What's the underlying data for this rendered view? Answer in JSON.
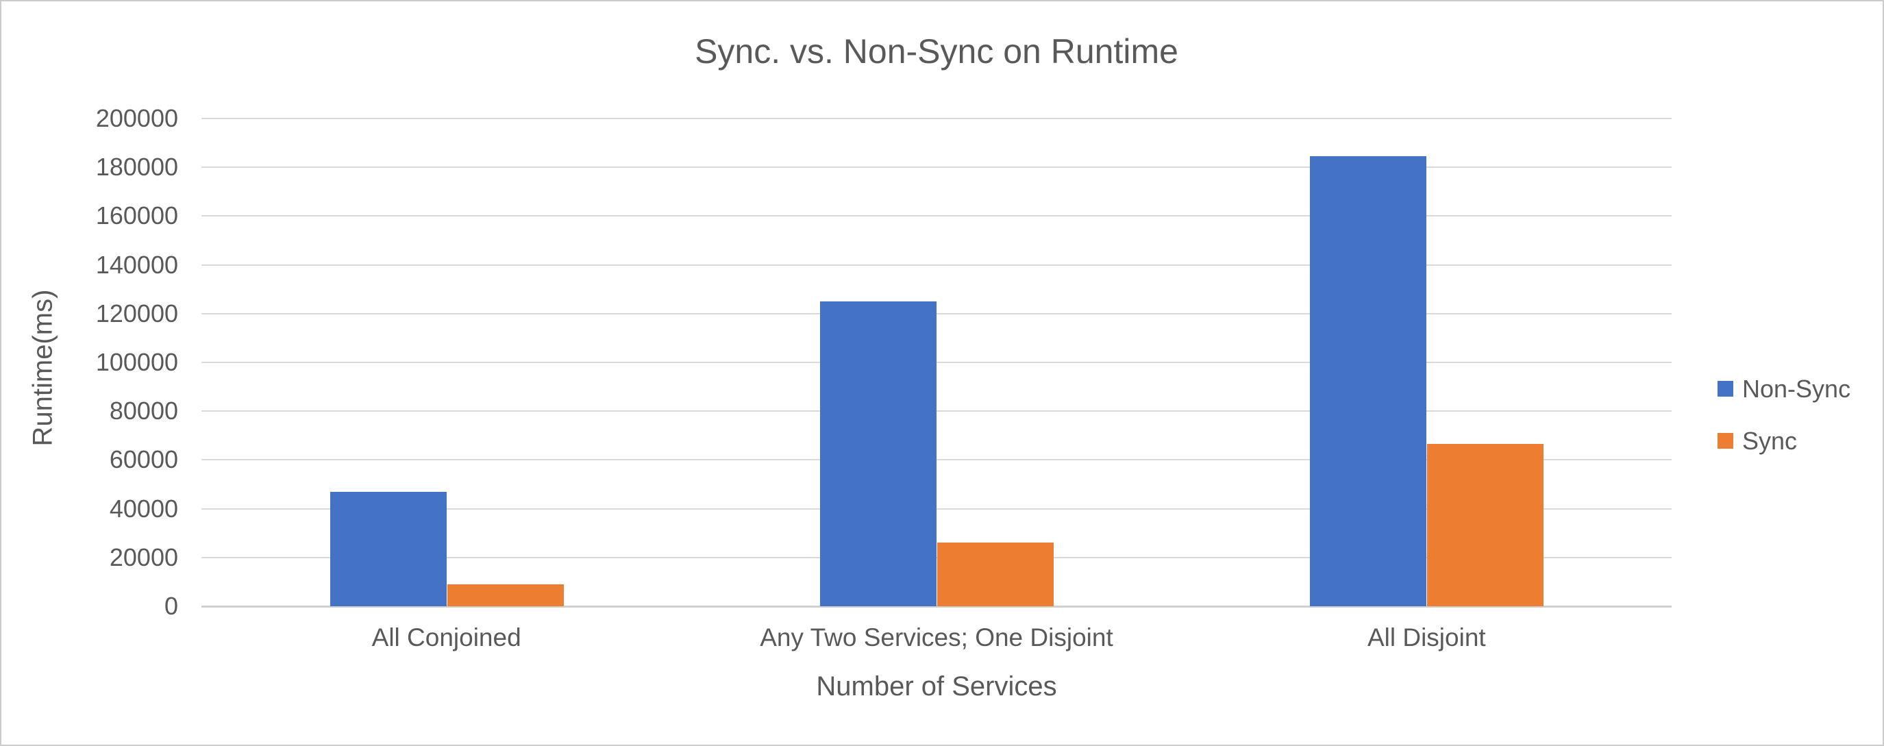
{
  "window": {
    "background": "#ffffff",
    "border_color": "#cccccc"
  },
  "chart_data": {
    "type": "bar",
    "title": "Sync. vs. Non-Sync on Runtime",
    "categories": [
      "All Conjoined",
      "Any Two Services; One Disjoint",
      "All Disjoint"
    ],
    "series": [
      {
        "name": "Non-Sync",
        "color": "#4472C4",
        "values": [
          47000,
          125000,
          184500
        ]
      },
      {
        "name": "Sync",
        "color": "#ED7D31",
        "values": [
          9000,
          26000,
          66500
        ]
      }
    ],
    "xlabel": "Number of Services",
    "ylabel": "Runtime(ms)",
    "ylim": [
      0,
      200000
    ],
    "ytick_step": 20000,
    "yticks": [
      0,
      20000,
      40000,
      60000,
      80000,
      100000,
      120000,
      140000,
      160000,
      180000,
      200000
    ],
    "grid": true,
    "legend_position": "right",
    "gridline_color": "#d9d9d9",
    "axis_line_color": "#d0d0d0",
    "text_color": "#595959"
  }
}
